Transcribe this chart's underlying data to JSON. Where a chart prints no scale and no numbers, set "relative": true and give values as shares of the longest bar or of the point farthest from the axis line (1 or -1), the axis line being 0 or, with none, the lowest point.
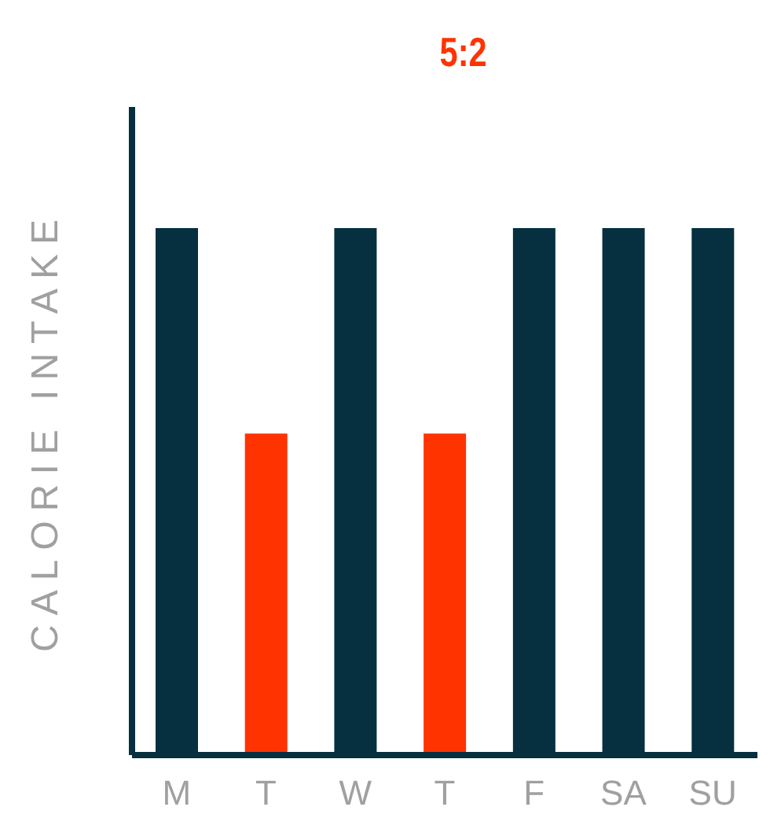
{
  "chart_data": {
    "type": "bar",
    "title": "5:2",
    "ylabel": "CALORIE INTAKE",
    "relative": true,
    "categories": [
      "M",
      "T",
      "W",
      "T",
      "F",
      "SA",
      "SU"
    ],
    "values": [
      1,
      0.61,
      1,
      0.61,
      1,
      1,
      1
    ],
    "colors": [
      "#062f40",
      "#ff3300",
      "#062f40",
      "#ff3300",
      "#062f40",
      "#062f40",
      "#062f40"
    ]
  }
}
